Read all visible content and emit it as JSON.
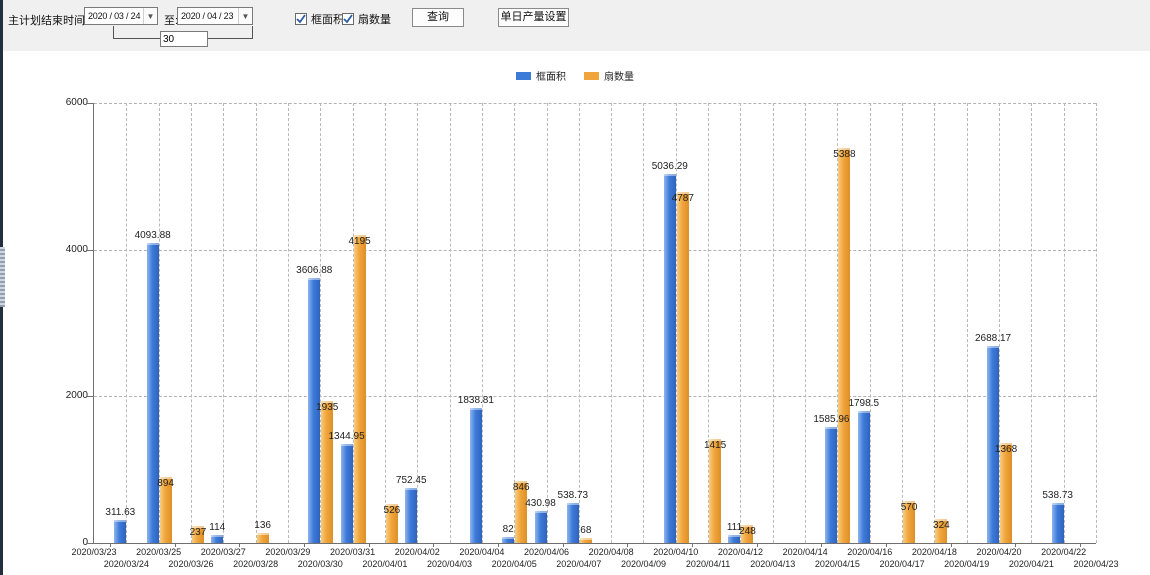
{
  "toolbar": {
    "label_start": "主计划结束时间:",
    "start_date": "2020 / 03 / 24",
    "label_to": "至:",
    "end_date": "2020 / 04 / 23",
    "days_between": "30",
    "checkbox_area": {
      "label": "框面积",
      "checked": true
    },
    "checkbox_fan": {
      "label": "扇数量",
      "checked": true
    },
    "query_button": "查询",
    "daily_output_button": "单日产量设置"
  },
  "legend": {
    "items": [
      {
        "label": "框面积",
        "color": "#3d7bd9"
      },
      {
        "label": "扇数量",
        "color": "#f0a43c"
      }
    ]
  },
  "chart_data": {
    "type": "bar",
    "title": "",
    "xlabel": "",
    "ylabel": "",
    "ylim": [
      0,
      6000
    ],
    "yticks": [
      0,
      2000,
      4000,
      6000
    ],
    "grid": true,
    "legend_position": "top",
    "categories": [
      "2020/03/23",
      "2020/03/24",
      "2020/03/25",
      "2020/03/26",
      "2020/03/27",
      "2020/03/28",
      "2020/03/29",
      "2020/03/30",
      "2020/03/31",
      "2020/04/01",
      "2020/04/02",
      "2020/04/03",
      "2020/04/04",
      "2020/04/05",
      "2020/04/06",
      "2020/04/07",
      "2020/04/08",
      "2020/04/09",
      "2020/04/10",
      "2020/04/11",
      "2020/04/12",
      "2020/04/13",
      "2020/04/14",
      "2020/04/15",
      "2020/04/16",
      "2020/04/17",
      "2020/04/18",
      "2020/04/19",
      "2020/04/20",
      "2020/04/21",
      "2020/04/22",
      "2020/04/23"
    ],
    "series": [
      {
        "name": "框面积",
        "color": "#3d7bd9",
        "values": [
          null,
          311.63,
          4093.88,
          null,
          114,
          null,
          null,
          3606.88,
          1344.95,
          null,
          752.45,
          null,
          1838.81,
          82,
          430.98,
          538.73,
          null,
          null,
          5036.29,
          null,
          111,
          null,
          null,
          1585.96,
          1798.5,
          null,
          null,
          null,
          2688.17,
          null,
          538.73,
          null
        ]
      },
      {
        "name": "扇数量",
        "color": "#f0a43c",
        "values": [
          null,
          null,
          894,
          237,
          null,
          136,
          null,
          1935,
          4195,
          526,
          null,
          null,
          null,
          846,
          null,
          68,
          null,
          null,
          4787,
          1415,
          248,
          null,
          null,
          5388,
          null,
          570,
          324,
          null,
          1368,
          null,
          null,
          null
        ]
      }
    ]
  }
}
